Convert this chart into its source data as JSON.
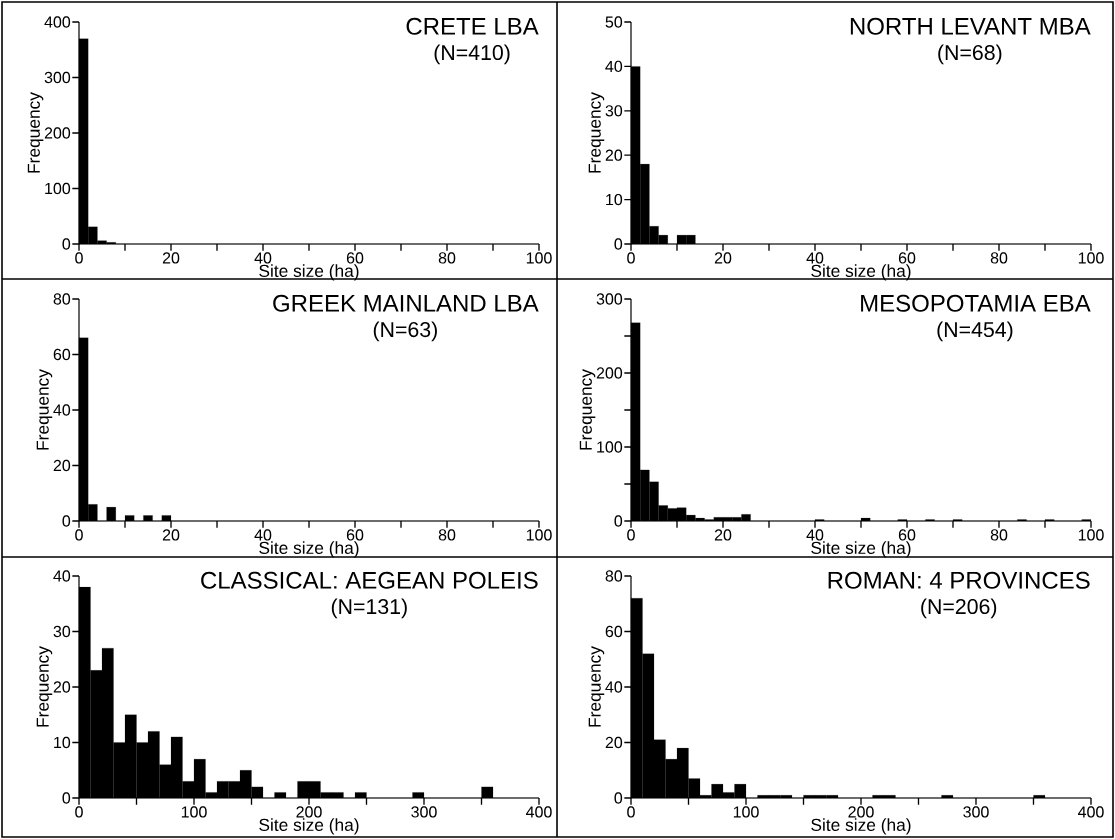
{
  "chart_data": [
    {
      "type": "histogram",
      "title": "CRETE LBA",
      "subtitle": "(N=410)",
      "xlabel": "Site size (ha)",
      "ylabel": "Frequency",
      "color": "#000000",
      "bins": [
        0,
        2,
        4,
        6,
        8,
        10,
        12,
        14,
        16,
        18,
        20,
        22,
        24,
        26,
        28,
        30,
        32,
        34,
        36,
        38,
        40,
        42,
        44,
        46,
        48,
        50,
        52,
        54,
        56,
        58,
        60,
        62,
        64,
        66,
        68,
        70,
        72,
        74,
        76,
        78,
        80,
        82,
        84,
        86,
        88,
        90,
        92,
        94,
        96,
        98,
        100
      ],
      "values": [
        370,
        31,
        6,
        3,
        0,
        0,
        0,
        0,
        0,
        0,
        0,
        0,
        0,
        0,
        0,
        0,
        0,
        0,
        0,
        0,
        0,
        0,
        0,
        0,
        0,
        0,
        0,
        0,
        0,
        0,
        0,
        0,
        0,
        0,
        0,
        0,
        0,
        0,
        0,
        0,
        0,
        0,
        0,
        0,
        0,
        0,
        0,
        0,
        0,
        0
      ],
      "xlim": [
        0,
        100
      ],
      "ylim": [
        0,
        400
      ],
      "xticks": [
        0,
        {
          "value": 10,
          "label": null
        },
        20,
        {
          "value": 30,
          "label": null
        },
        40,
        {
          "value": 50,
          "label": null
        },
        60,
        {
          "value": 70,
          "label": null
        },
        80,
        {
          "value": 90,
          "label": null
        },
        100
      ],
      "yticks": [
        0,
        100,
        200,
        300,
        400
      ]
    },
    {
      "type": "histogram",
      "title": "NORTH LEVANT MBA",
      "subtitle": "(N=68)",
      "xlabel": "Site size (ha)",
      "ylabel": "Frequency",
      "color": "#000000",
      "bins": [
        0,
        2,
        4,
        6,
        8,
        10,
        12,
        14,
        16,
        18,
        20,
        22,
        24,
        26,
        28,
        30,
        32,
        34,
        36,
        38,
        40,
        42,
        44,
        46,
        48,
        50,
        52,
        54,
        56,
        58,
        60,
        62,
        64,
        66,
        68,
        70,
        72,
        74,
        76,
        78,
        80,
        82,
        84,
        86,
        88,
        90,
        92,
        94,
        96,
        98,
        100
      ],
      "values": [
        40,
        18,
        4,
        2,
        0,
        2,
        2,
        0,
        0,
        0,
        0,
        0,
        0,
        0,
        0,
        0,
        0,
        0,
        0,
        0,
        0,
        0,
        0,
        0,
        0,
        0,
        0,
        0,
        0,
        0,
        0,
        0,
        0,
        0,
        0,
        0,
        0,
        0,
        0,
        0,
        0,
        0,
        0,
        0,
        0,
        0,
        0,
        0,
        0,
        0
      ],
      "xlim": [
        0,
        100
      ],
      "ylim": [
        0,
        50
      ],
      "xticks": [
        0,
        {
          "value": 10,
          "label": null
        },
        20,
        {
          "value": 30,
          "label": null
        },
        40,
        {
          "value": 50,
          "label": null
        },
        60,
        {
          "value": 70,
          "label": null
        },
        80,
        {
          "value": 90,
          "label": null
        },
        100
      ],
      "yticks": [
        0,
        10,
        20,
        30,
        40,
        50
      ]
    },
    {
      "type": "histogram",
      "title": "GREEK MAINLAND LBA",
      "subtitle": "(N=63)",
      "xlabel": "Site size (ha)",
      "ylabel": "Frequency",
      "color": "#000000",
      "bins": [
        0,
        2,
        4,
        6,
        8,
        10,
        12,
        14,
        16,
        18,
        20,
        22,
        24,
        26,
        28,
        30,
        32,
        34,
        36,
        38,
        40,
        42,
        44,
        46,
        48,
        50,
        52,
        54,
        56,
        58,
        60,
        62,
        64,
        66,
        68,
        70,
        72,
        74,
        76,
        78,
        80,
        82,
        84,
        86,
        88,
        90,
        92,
        94,
        96,
        98,
        100
      ],
      "values": [
        66,
        6,
        0,
        5,
        0,
        2,
        0,
        2,
        0,
        2,
        0,
        0,
        0,
        0,
        0,
        0,
        0,
        0,
        0,
        0,
        0,
        0,
        0,
        0,
        0,
        0,
        0,
        0,
        0,
        0,
        0,
        0,
        0,
        0,
        0,
        0,
        0,
        0,
        0,
        0,
        0,
        0,
        0,
        0,
        0,
        0,
        0,
        0,
        0,
        0
      ],
      "xlim": [
        0,
        100
      ],
      "ylim": [
        0,
        80
      ],
      "xticks": [
        0,
        {
          "value": 10,
          "label": null
        },
        20,
        {
          "value": 30,
          "label": null
        },
        40,
        {
          "value": 50,
          "label": null
        },
        60,
        {
          "value": 70,
          "label": null
        },
        80,
        {
          "value": 90,
          "label": null
        },
        100
      ],
      "yticks": [
        0,
        20,
        40,
        60,
        80
      ]
    },
    {
      "type": "histogram",
      "title": "MESOPOTAMIA EBA",
      "subtitle": "(N=454)",
      "xlabel": "Site size (ha)",
      "ylabel": "Frequency",
      "color": "#000000",
      "bins": [
        0,
        2,
        4,
        6,
        8,
        10,
        12,
        14,
        16,
        18,
        20,
        22,
        24,
        26,
        28,
        30,
        32,
        34,
        36,
        38,
        40,
        42,
        44,
        46,
        48,
        50,
        52,
        54,
        56,
        58,
        60,
        62,
        64,
        66,
        68,
        70,
        72,
        74,
        76,
        78,
        80,
        82,
        84,
        86,
        88,
        90,
        92,
        94,
        96,
        98,
        100
      ],
      "values": [
        268,
        69,
        53,
        21,
        17,
        18,
        8,
        4,
        2,
        5,
        5,
        5,
        9,
        0,
        0,
        0,
        0,
        0,
        0,
        0,
        2,
        0,
        0,
        0,
        0,
        4,
        0,
        0,
        0,
        2,
        0,
        0,
        2,
        0,
        0,
        2,
        0,
        0,
        0,
        0,
        0,
        0,
        2,
        0,
        0,
        2,
        0,
        0,
        0,
        2
      ],
      "xlim": [
        0,
        100
      ],
      "ylim": [
        0,
        300
      ],
      "xticks": [
        0,
        {
          "value": 10,
          "label": null
        },
        20,
        {
          "value": 30,
          "label": null
        },
        40,
        {
          "value": 50,
          "label": null
        },
        60,
        {
          "value": 70,
          "label": null
        },
        80,
        {
          "value": 90,
          "label": null
        },
        100
      ],
      "yticks": [
        0,
        {
          "value": 50,
          "label": null
        },
        100,
        {
          "value": 150,
          "label": null
        },
        200,
        {
          "value": 250,
          "label": null
        },
        300
      ]
    },
    {
      "type": "histogram",
      "title": "CLASSICAL: AEGEAN POLEIS",
      "subtitle": "(N=131)",
      "xlabel": "Site size (ha)",
      "ylabel": "Frequency",
      "color": "#000000",
      "bins": [
        0,
        10,
        20,
        30,
        40,
        50,
        60,
        70,
        80,
        90,
        100,
        110,
        120,
        130,
        140,
        150,
        160,
        170,
        180,
        190,
        200,
        210,
        220,
        230,
        240,
        250,
        260,
        270,
        280,
        290,
        300,
        310,
        320,
        330,
        340,
        350,
        360,
        370,
        380,
        390,
        400
      ],
      "values": [
        38,
        23,
        27,
        10,
        15,
        10,
        12,
        6,
        11,
        3,
        7,
        1,
        3,
        3,
        5,
        2,
        0,
        1,
        0,
        3,
        3,
        1,
        1,
        0,
        1,
        0,
        0,
        0,
        0,
        1,
        0,
        0,
        0,
        0,
        0,
        2,
        0,
        0,
        0,
        0
      ],
      "xlim": [
        0,
        400
      ],
      "ylim": [
        0,
        40
      ],
      "xticks": [
        0,
        {
          "value": 50,
          "label": null
        },
        100,
        {
          "value": 150,
          "label": null
        },
        200,
        {
          "value": 250,
          "label": null
        },
        300,
        {
          "value": 350,
          "label": null
        },
        400
      ],
      "yticks": [
        0,
        10,
        20,
        30,
        40
      ]
    },
    {
      "type": "histogram",
      "title": "ROMAN: 4 PROVINCES",
      "subtitle": "(N=206)",
      "xlabel": "Site size (ha)",
      "ylabel": "Frequency",
      "color": "#000000",
      "bins": [
        0,
        10,
        20,
        30,
        40,
        50,
        60,
        70,
        80,
        90,
        100,
        110,
        120,
        130,
        140,
        150,
        160,
        170,
        180,
        190,
        200,
        210,
        220,
        230,
        240,
        250,
        260,
        270,
        280,
        290,
        300,
        310,
        320,
        330,
        340,
        350,
        360,
        370,
        380,
        390,
        400
      ],
      "values": [
        72,
        52,
        21,
        14,
        18,
        7,
        1,
        5,
        2,
        5,
        0,
        1,
        1,
        1,
        0,
        1,
        1,
        1,
        0,
        0,
        0,
        1,
        1,
        0,
        0,
        0,
        0,
        1,
        0,
        0,
        0,
        0,
        0,
        0,
        0,
        1,
        0,
        0,
        0,
        0
      ],
      "xlim": [
        0,
        400
      ],
      "ylim": [
        0,
        80
      ],
      "xticks": [
        0,
        {
          "value": 50,
          "label": null
        },
        100,
        {
          "value": 150,
          "label": null
        },
        200,
        {
          "value": 250,
          "label": null
        },
        300,
        {
          "value": 350,
          "label": null
        },
        400
      ],
      "yticks": [
        0,
        20,
        40,
        60,
        80
      ]
    }
  ]
}
